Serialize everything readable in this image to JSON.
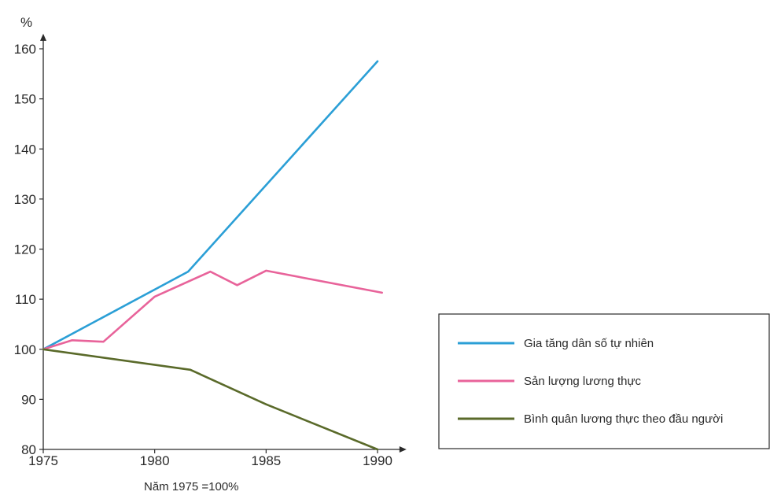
{
  "chart_data": {
    "type": "line",
    "title": "",
    "xlabel": "",
    "ylabel": "%",
    "note": "Năm 1975 =100%",
    "xlim": [
      1975,
      1991.3
    ],
    "ylim": [
      80,
      163
    ],
    "xticks": [
      1975,
      1980,
      1985,
      1990
    ],
    "yticks": [
      80,
      90,
      100,
      110,
      120,
      130,
      140,
      150,
      160
    ],
    "grid": false,
    "legend_position": "right",
    "series": [
      {
        "name": "Gia tăng dân số tự nhiên",
        "color": "#2b9fd6",
        "x": [
          1975,
          1981.5,
          1990
        ],
        "y": [
          100,
          115.5,
          157.5
        ]
      },
      {
        "name": "Sản lượng lương thực",
        "color": "#e8639a",
        "x": [
          1975,
          1976.3,
          1977.7,
          1980,
          1982.5,
          1983.7,
          1985,
          1990.2
        ],
        "y": [
          100,
          101.8,
          101.5,
          110.5,
          115.5,
          112.8,
          115.7,
          111.3
        ]
      },
      {
        "name": "Bình quân lương thực theo đầu người",
        "color": "#5a6a2a",
        "x": [
          1975,
          1981.6,
          1985,
          1990
        ],
        "y": [
          100,
          95.9,
          89,
          80
        ]
      }
    ]
  }
}
